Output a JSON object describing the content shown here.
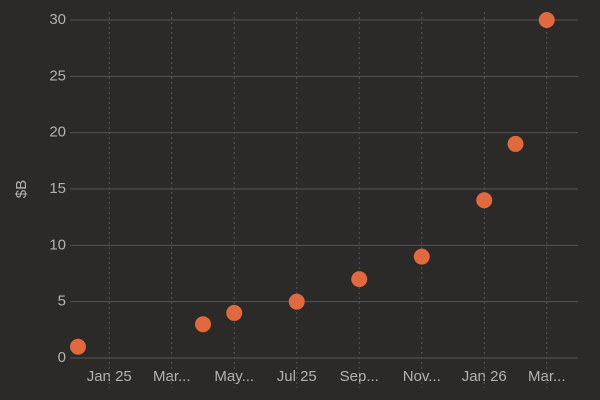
{
  "chart_data": {
    "type": "scatter",
    "ylabel": "$B",
    "x": [
      "2024-12",
      "2025-04",
      "2025-05",
      "2025-07",
      "2025-09",
      "2025-11",
      "2026-01",
      "2026-02",
      "2026-03"
    ],
    "values": [
      1,
      3,
      4,
      5,
      7,
      9,
      14,
      19,
      30
    ],
    "color": "#e0693f",
    "xlim": [
      "2024-12",
      "2026-04"
    ],
    "xticks": [
      {
        "value": "2025-01",
        "label": "Jan 25"
      },
      {
        "value": "2025-03",
        "label": "Mar..."
      },
      {
        "value": "2025-05",
        "label": "May..."
      },
      {
        "value": "2025-07",
        "label": "Jul 25"
      },
      {
        "value": "2025-09",
        "label": "Sep..."
      },
      {
        "value": "2025-11",
        "label": "Nov..."
      },
      {
        "value": "2026-01",
        "label": "Jan 26"
      },
      {
        "value": "2026-03",
        "label": "Mar..."
      }
    ],
    "ylim": [
      0,
      30
    ],
    "yticks": [
      0,
      5,
      10,
      15,
      20,
      25,
      30
    ],
    "grid": true
  }
}
